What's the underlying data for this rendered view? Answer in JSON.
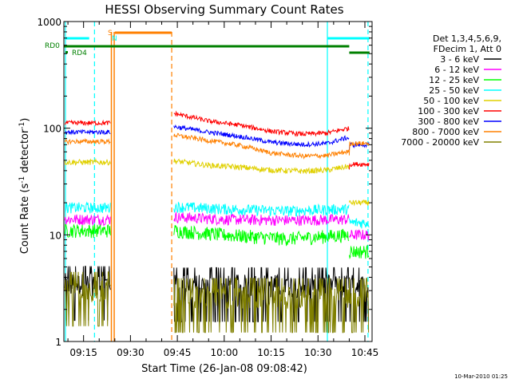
{
  "chart_data": {
    "type": "line",
    "title": "HESSI Observing Summary Count Rates",
    "xlabel": "Start Time (26-Jan-08 09:08:42)",
    "ylabel_main": "Count Rate (s",
    "ylabel_sup1": "-1",
    "ylabel_mid": " detector",
    "ylabel_sup2": "-1",
    "ylabel_end": ")",
    "yscale": "log",
    "ylim": [
      1,
      1000
    ],
    "xlim_minutes": [
      548.7,
      647.3
    ],
    "x_ticks": [
      {
        "minute": 555,
        "label": "09:15"
      },
      {
        "minute": 570,
        "label": "09:30"
      },
      {
        "minute": 585,
        "label": "09:45"
      },
      {
        "minute": 600,
        "label": "10:00"
      },
      {
        "minute": 615,
        "label": "10:15"
      },
      {
        "minute": 630,
        "label": "10:30"
      },
      {
        "minute": 645,
        "label": "10:45"
      }
    ],
    "y_ticks": [
      {
        "value": 1,
        "label": "1"
      },
      {
        "value": 10,
        "label": "10"
      },
      {
        "value": 100,
        "label": "100"
      },
      {
        "value": 1000,
        "label": "1000"
      }
    ],
    "legend_header": [
      "Det 1,3,4,5,6,9,",
      "FDecim 1, Att 0"
    ],
    "series": [
      {
        "name": "3 - 6 keV",
        "color": "#000000",
        "key": "s3",
        "values": [
          {
            "start": 549,
            "end": 563.7,
            "level": 3.5
          },
          {
            "start": 583.9,
            "end": 646.3,
            "level": 3.4
          }
        ]
      },
      {
        "name": "6 - 12 keV",
        "color": "#ff00ff",
        "key": "s6",
        "values": [
          {
            "start": 549,
            "end": 563.7,
            "level": 14
          },
          {
            "start": 583.9,
            "end": 640,
            "level": 14
          },
          {
            "start": 640,
            "end": 646.3,
            "level": 10
          }
        ]
      },
      {
        "name": "12 - 25 keV",
        "color": "#00ff00",
        "key": "s12",
        "values": [
          {
            "start": 549,
            "end": 563.7,
            "level": 11
          },
          {
            "start": 583.9,
            "end": 640,
            "level": 10
          },
          {
            "start": 640,
            "end": 646.3,
            "level": 7
          }
        ]
      },
      {
        "name": "25 - 50 keV",
        "color": "#00ffff",
        "key": "s25",
        "values": [
          {
            "start": 549,
            "end": 563.7,
            "level": 18
          },
          {
            "start": 583.9,
            "end": 640,
            "level": 17.5
          },
          {
            "start": 640,
            "end": 646.3,
            "level": 13
          }
        ]
      },
      {
        "name": "50 - 100 keV",
        "color": "#e0d000",
        "key": "s50",
        "values": [
          {
            "start": 549,
            "end": 563.7,
            "level": 48
          },
          {
            "start": 583.9,
            "end": 640,
            "level": 44
          },
          {
            "start": 640,
            "end": 646.3,
            "level": 20
          }
        ]
      },
      {
        "name": "100 - 300 keV",
        "color": "#ff0000",
        "key": "s100",
        "values": [
          {
            "start": 549,
            "end": 563.7,
            "level": 112
          },
          {
            "start": 583.9,
            "end": 640,
            "level": 110
          },
          {
            "start": 640,
            "end": 646.3,
            "level": 46
          }
        ]
      },
      {
        "name": "300 - 800 keV",
        "color": "#0000ff",
        "key": "s300",
        "values": [
          {
            "start": 549,
            "end": 563.7,
            "level": 92
          },
          {
            "start": 583.9,
            "end": 640,
            "level": 90
          },
          {
            "start": 640,
            "end": 646.3,
            "level": 70
          }
        ]
      },
      {
        "name": "800 - 7000 keV",
        "color": "#ff8000",
        "key": "s800",
        "values": [
          {
            "start": 549,
            "end": 563.7,
            "level": 75
          },
          {
            "start": 583.9,
            "end": 640,
            "level": 75
          },
          {
            "start": 640,
            "end": 646.3,
            "level": 72
          }
        ]
      },
      {
        "name": "7000 - 20000 keV",
        "color": "#808000",
        "key": "s7000",
        "values": [
          {
            "start": 549,
            "end": 563.7,
            "level": 3.1
          },
          {
            "start": 583.9,
            "end": 646.3,
            "level": 2.7
          }
        ]
      }
    ],
    "flags": [
      {
        "label": "RD0",
        "color": "#008000"
      },
      {
        "label": "RD4",
        "color": "#008000"
      },
      {
        "label": "S",
        "color": "#ff8000"
      },
      {
        "label": "N",
        "color": "#00ffff"
      }
    ],
    "markers": {
      "cyan_solid_minutes": [
        549.2,
        633
      ],
      "cyan_dashed_minutes": [
        558.5,
        646
      ],
      "orange_solid_minutes": [
        563.9,
        564.8
      ],
      "orange_dashed_minutes": [
        583.2
      ]
    },
    "footer": "10-Mar-2010 01:25"
  }
}
